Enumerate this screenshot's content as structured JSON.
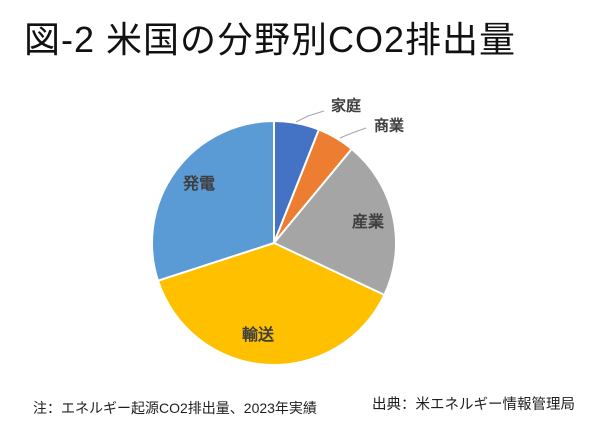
{
  "title": "図-2 米国の分野別CO2排出量",
  "notes": {
    "left": "注：エネルギー起源CO2排出量、2023年実績",
    "right": "出典：米エネルギー情報管理局"
  },
  "chart_data": {
    "type": "pie",
    "title": "図-2 米国の分野別CO2排出量",
    "unit": "percent",
    "start_angle_deg": 0,
    "direction": "clockwise",
    "background_color": "#FFFFFF",
    "label_color": "#3F3F3F",
    "leader_line_color": "#A6A6A6",
    "legend": "none",
    "slices": [
      {
        "name": "household",
        "label": "家庭",
        "value": 6,
        "color": "#4472C4",
        "label_placement": "outside"
      },
      {
        "name": "commercial",
        "label": "商業",
        "value": 5,
        "color": "#ED7D31",
        "label_placement": "outside"
      },
      {
        "name": "industry",
        "label": "産業",
        "value": 21,
        "color": "#A5A5A5",
        "label_placement": "inside"
      },
      {
        "name": "transport",
        "label": "輸送",
        "value": 38,
        "color": "#FFC000",
        "label_placement": "inside"
      },
      {
        "name": "power",
        "label": "発電",
        "value": 30,
        "color": "#5B9BD5",
        "label_placement": "inside"
      }
    ]
  }
}
